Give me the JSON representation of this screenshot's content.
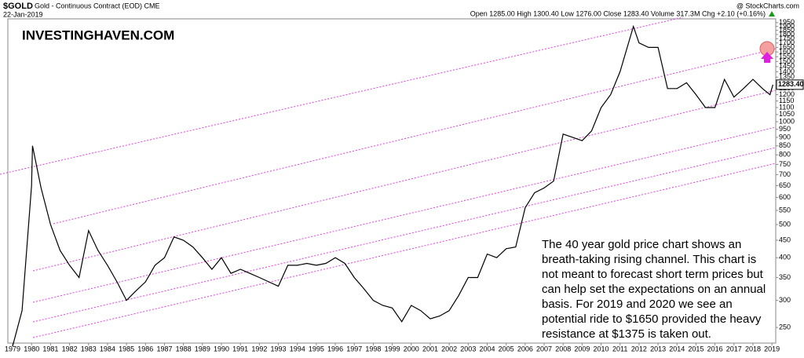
{
  "chart_data": {
    "type": "line",
    "symbol": "$GOLD",
    "title": "Gold - Continuous Contract (EOD) CME",
    "date": "22-Jan-2019",
    "stats": "Open 1285.00  High 1300.40  Low 1276.00  Close 1283.40  Volume 317.3M  Chg +2.10 (+0.16%)",
    "credit": "@ StockCharts.com",
    "brand": "INVESTINGHAVEN.COM",
    "annotation": [
      "The 40 year gold price chart shows an",
      "breath-taking rising channel. This chart is",
      "not meant to forecast short term prices but",
      "can help set the expectations on an annual",
      "basis. For 2019 and 2020 we see an",
      "potential ride to $1650 provided the heavy",
      "resistance at $1375 is taken out."
    ],
    "color": "#000000",
    "log_scale": true,
    "grid": false,
    "x": [
      1979.0,
      1979.5,
      1980.0,
      1980.05,
      1980.5,
      1981.0,
      1981.5,
      1982.0,
      1982.5,
      1983.0,
      1983.5,
      1984.0,
      1984.5,
      1985.0,
      1985.5,
      1986.0,
      1986.5,
      1987.0,
      1987.5,
      1988.0,
      1988.5,
      1989.0,
      1989.5,
      1990.0,
      1990.5,
      1991.0,
      1991.5,
      1992.0,
      1992.5,
      1993.0,
      1993.5,
      1994.0,
      1994.5,
      1995.0,
      1995.5,
      1996.0,
      1996.5,
      1997.0,
      1997.5,
      1998.0,
      1998.5,
      1999.0,
      1999.5,
      2000.0,
      2000.5,
      2001.0,
      2001.5,
      2002.0,
      2002.5,
      2003.0,
      2003.5,
      2004.0,
      2004.5,
      2005.0,
      2005.5,
      2006.0,
      2006.5,
      2007.0,
      2007.5,
      2008.0,
      2008.5,
      2009.0,
      2009.5,
      2010.0,
      2010.5,
      2011.0,
      2011.7,
      2012.0,
      2012.5,
      2013.0,
      2013.5,
      2014.0,
      2014.5,
      2015.0,
      2015.5,
      2016.0,
      2016.5,
      2017.0,
      2017.5,
      2018.0,
      2018.5,
      2018.9,
      2019.05
    ],
    "values": [
      220,
      280,
      650,
      850,
      640,
      500,
      420,
      380,
      350,
      480,
      420,
      380,
      340,
      300,
      320,
      340,
      380,
      400,
      460,
      450,
      430,
      400,
      370,
      400,
      360,
      370,
      360,
      350,
      340,
      330,
      380,
      380,
      385,
      380,
      385,
      400,
      385,
      350,
      325,
      300,
      290,
      285,
      260,
      290,
      280,
      265,
      270,
      280,
      310,
      350,
      350,
      410,
      400,
      425,
      430,
      560,
      620,
      640,
      670,
      920,
      900,
      880,
      940,
      1100,
      1200,
      1400,
      1900,
      1700,
      1650,
      1650,
      1250,
      1250,
      1300,
      1200,
      1100,
      1100,
      1330,
      1180,
      1250,
      1330,
      1250,
      1200,
      1283.4
    ],
    "last_price": {
      "value": 1283.4,
      "label": "1283.40"
    },
    "xlim": [
      1978.75,
      2019.2
    ],
    "xticks": [
      1979,
      1980,
      1981,
      1982,
      1983,
      1984,
      1985,
      1986,
      1987,
      1988,
      1989,
      1990,
      1991,
      1992,
      1993,
      1994,
      1995,
      1996,
      1997,
      1998,
      1999,
      2000,
      2001,
      2002,
      2003,
      2004,
      2005,
      2006,
      2007,
      2008,
      2009,
      2010,
      2011,
      2012,
      2013,
      2014,
      2015,
      2016,
      2017,
      2018,
      2019
    ],
    "ylim": [
      225,
      2000
    ],
    "yticks": [
      250,
      300,
      350,
      400,
      450,
      500,
      550,
      600,
      650,
      700,
      750,
      800,
      850,
      900,
      950,
      1000,
      1050,
      1100,
      1150,
      1200,
      1250,
      1350,
      1400,
      1450,
      1500,
      1550,
      1600,
      1650,
      1700,
      1750,
      1800,
      1850,
      1900,
      1950
    ]
  }
}
